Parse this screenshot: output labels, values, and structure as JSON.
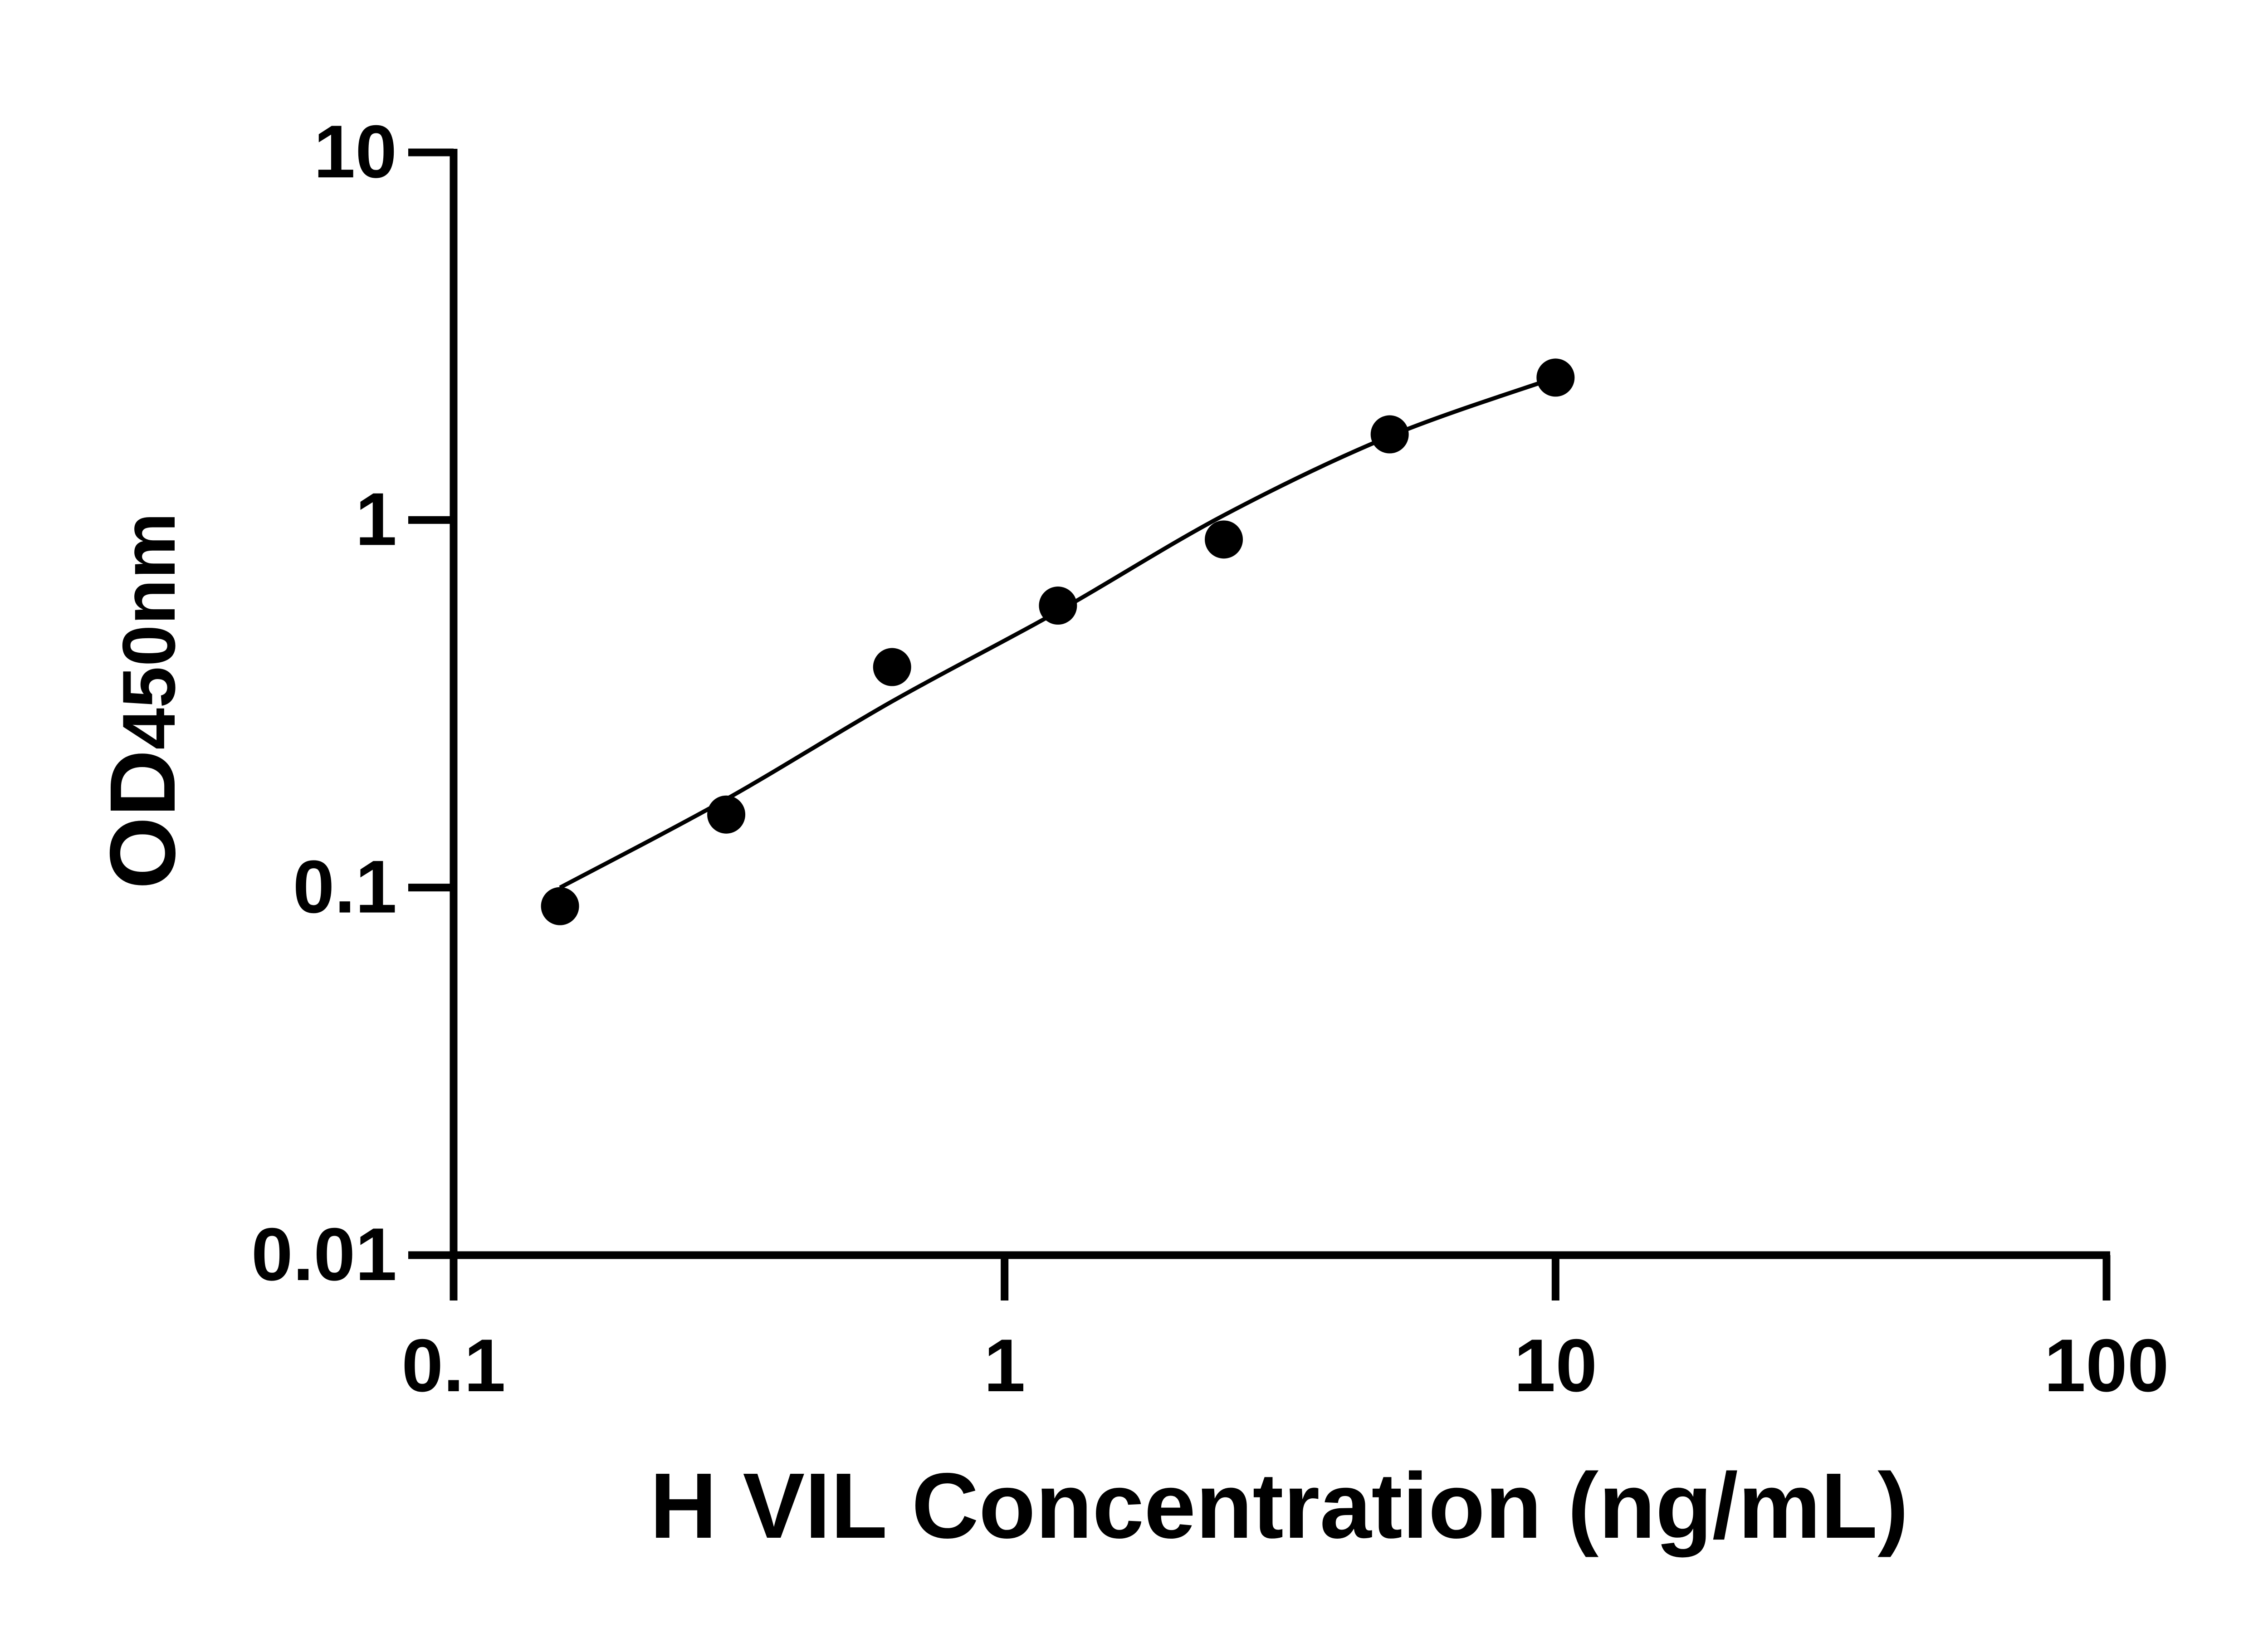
{
  "chart_data": {
    "type": "scatter",
    "title": "",
    "xlabel": "H VIL Concentration (ng/mL)",
    "ylabel": {
      "main": "OD",
      "sub": "450nm"
    },
    "x_scale": "log",
    "y_scale": "log",
    "xlim": [
      0.1,
      100
    ],
    "ylim": [
      0.01,
      10
    ],
    "x_ticks": [
      0.1,
      1,
      10,
      100
    ],
    "x_tick_labels": [
      "0.1",
      "1",
      "10",
      "100"
    ],
    "y_ticks": [
      0.01,
      0.1,
      1,
      10
    ],
    "y_tick_labels": [
      "0.01",
      "0.1",
      "1",
      "10"
    ],
    "grid": false,
    "points": {
      "x": [
        0.156,
        0.3125,
        0.625,
        1.25,
        2.5,
        5,
        10
      ],
      "y": [
        0.089,
        0.158,
        0.398,
        0.585,
        0.885,
        1.71,
        2.44
      ]
    },
    "fit_curve": {
      "x": [
        0.156,
        0.3125,
        0.625,
        1.25,
        2.5,
        5,
        10
      ],
      "y": [
        0.1,
        0.174,
        0.321,
        0.564,
        1.03,
        1.69,
        2.44
      ]
    },
    "colors": {
      "points": "#000000",
      "line": "#000000",
      "axes": "#000000"
    }
  }
}
